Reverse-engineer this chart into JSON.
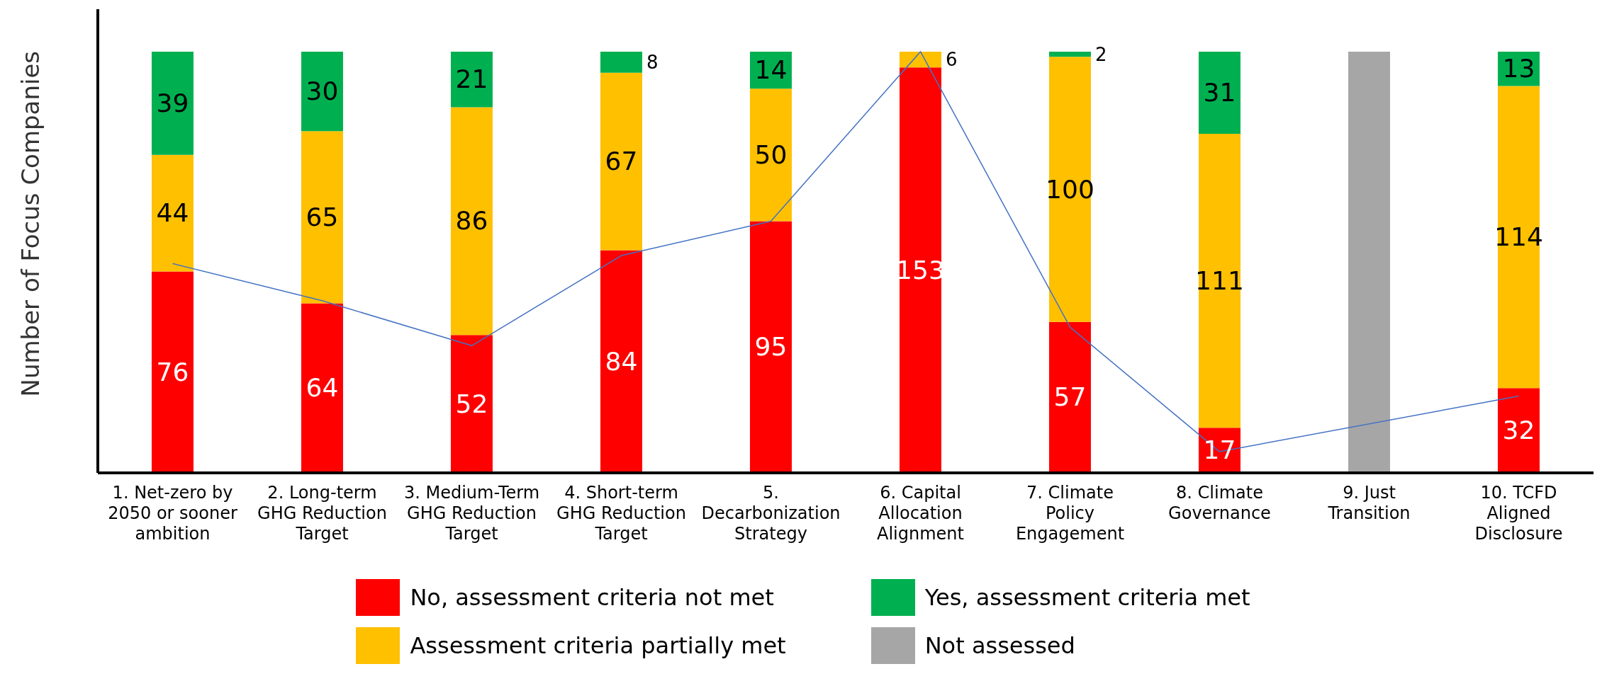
{
  "chart_data": {
    "type": "bar",
    "stacked": true,
    "ylabel": "Number of Focus Companies",
    "categories": [
      "1. Net-zero by 2050 or sooner ambition",
      "2. Long-term GHG Reduction Target",
      "3. Medium-Term GHG Reduction Target",
      "4. Short-term GHG Reduction Target",
      "5. Decarbonization Strategy",
      "6. Capital Allocation Alignment",
      "7. Climate Policy Engagement",
      "8. Climate Governance",
      "9. Just Transition",
      "10. TCFD Aligned Disclosure"
    ],
    "ylim": [
      0,
      175
    ],
    "tick_labels": "x",
    "grid": false,
    "legend": "bottom",
    "series": [
      {
        "name": "No, assessment criteria not met",
        "color": "#ff0000",
        "values": [
          76,
          64,
          52,
          84,
          95,
          153,
          57,
          17,
          null,
          32
        ],
        "value_labels": [
          "76",
          "64",
          "52",
          "84",
          "95",
          "153",
          "57",
          "17",
          null,
          "32"
        ]
      },
      {
        "name": "Assessment criteria partially met",
        "color": "#ffc000",
        "values": [
          44,
          65,
          86,
          67,
          50,
          6,
          100,
          111,
          null,
          114
        ],
        "value_labels": [
          "44",
          "65",
          "86",
          "67",
          "50",
          "6",
          "100",
          "111",
          null,
          "114"
        ]
      },
      {
        "name": "Yes, assessment criteria met",
        "color": "#00b050",
        "values": [
          39,
          30,
          21,
          8,
          14,
          null,
          2,
          31,
          null,
          13
        ],
        "value_labels": [
          "39",
          "30",
          "21",
          "8",
          "14",
          null,
          "2",
          "31",
          null,
          "13"
        ]
      },
      {
        "name": "Not assessed",
        "color": "#a6a6a6",
        "values": [
          null,
          null,
          null,
          null,
          null,
          null,
          null,
          null,
          159,
          null
        ]
      },
      {
        "type": "line",
        "color": "#4472c4",
        "values": [
          79,
          65,
          48,
          82,
          95,
          159,
          55,
          8,
          null,
          29
        ]
      }
    ]
  }
}
